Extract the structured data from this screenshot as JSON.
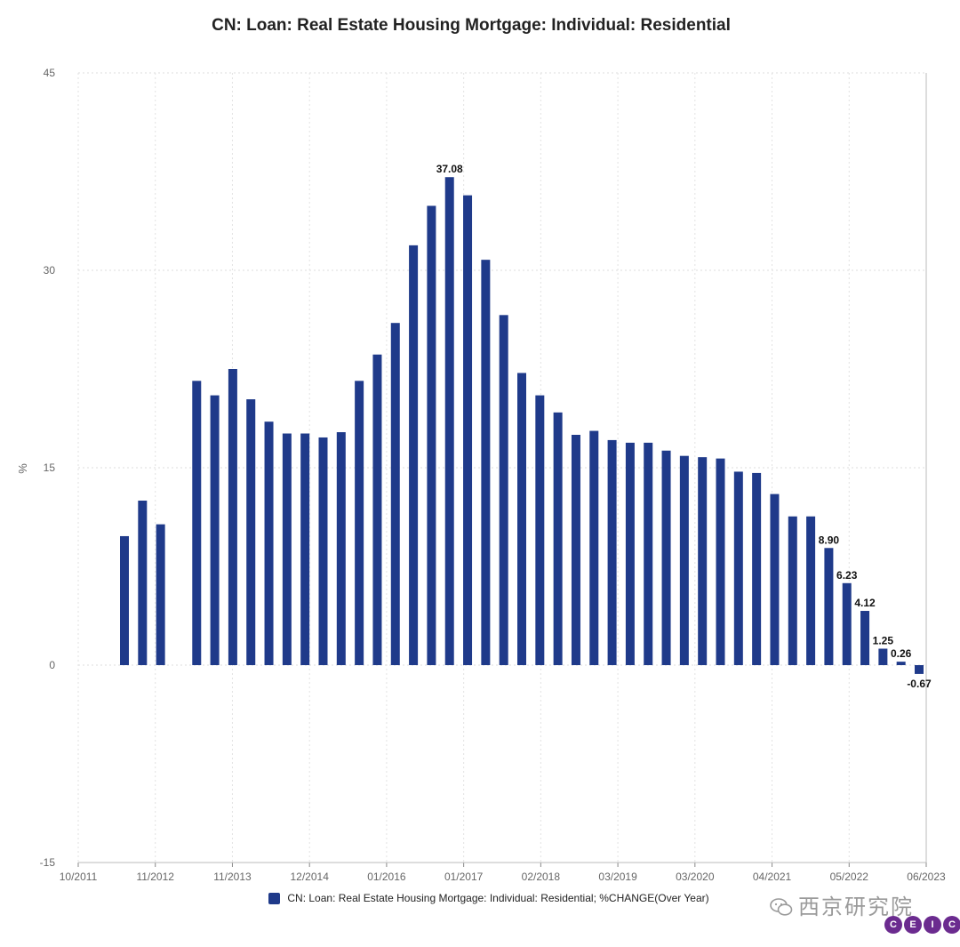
{
  "chart_data": {
    "type": "bar",
    "title": "CN: Loan: Real Estate Housing Mortgage: Individual: Residential",
    "ylabel": "%",
    "xlabel": "",
    "ylim": [
      -15,
      45
    ],
    "y_ticks": [
      "45",
      "30",
      "15",
      "0",
      "-15"
    ],
    "x_ticks": [
      "10/2011",
      "11/2012",
      "11/2013",
      "12/2014",
      "01/2016",
      "01/2017",
      "02/2018",
      "03/2019",
      "03/2020",
      "04/2021",
      "05/2022",
      "06/2023"
    ],
    "grid": true,
    "legend_position": "bottom",
    "series": [
      {
        "name": "CN: Loan: Real Estate Housing Mortgage: Individual: Residential; %CHANGE(Over Year)",
        "color": "#1f3a8a",
        "values": [
          9.8,
          12.5,
          10.7,
          null,
          21.6,
          20.5,
          22.5,
          20.2,
          18.5,
          17.6,
          17.6,
          17.3,
          17.7,
          21.6,
          23.6,
          26.0,
          31.9,
          34.9,
          37.08,
          35.7,
          30.8,
          26.6,
          22.2,
          20.5,
          19.2,
          17.5,
          17.8,
          17.1,
          16.9,
          16.9,
          16.3,
          15.9,
          15.8,
          15.7,
          14.7,
          14.6,
          13.0,
          11.3,
          11.3,
          8.9,
          6.23,
          4.12,
          1.25,
          0.26,
          -0.67
        ],
        "data_labels": {
          "18": "37.08",
          "39": "8.90",
          "40": "6.23",
          "41": "4.12",
          "42": "1.25",
          "43": "0.26",
          "44": "-0.67"
        }
      }
    ]
  },
  "legend": {
    "label": "CN: Loan: Real Estate Housing Mortgage: Individual: Residential; %CHANGE(Over Year)"
  },
  "watermark": {
    "text": "西京研究院",
    "icon": "wechat-icon"
  },
  "logo": {
    "letters": [
      "C",
      "E",
      "I",
      "C"
    ],
    "color": "#6b2b8f"
  }
}
